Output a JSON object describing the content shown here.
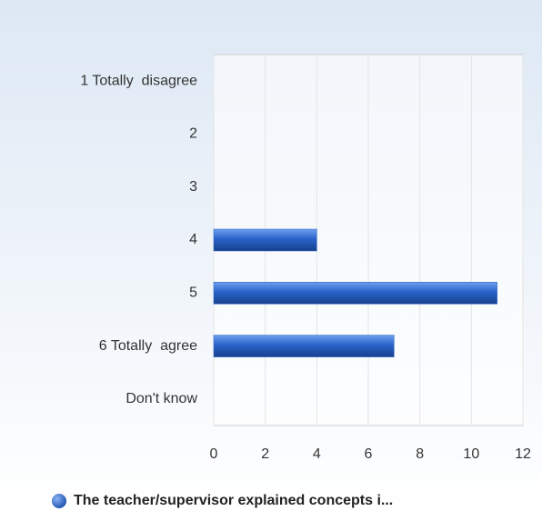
{
  "chart_data": {
    "type": "hbar",
    "categories": [
      "1 Totally  disagree",
      "2",
      "3",
      "4",
      "5",
      "6 Totally  agree",
      "Don't know"
    ],
    "series": [
      {
        "name": "The teacher/supervisor explained concepts i...",
        "color": "#2a63c9",
        "values": [
          0,
          0,
          0,
          4,
          11,
          7,
          0
        ]
      }
    ],
    "xlim": [
      0,
      12
    ],
    "xticks": [
      0,
      2,
      4,
      6,
      8,
      10,
      12
    ],
    "grid": true,
    "legend": "bottom"
  }
}
